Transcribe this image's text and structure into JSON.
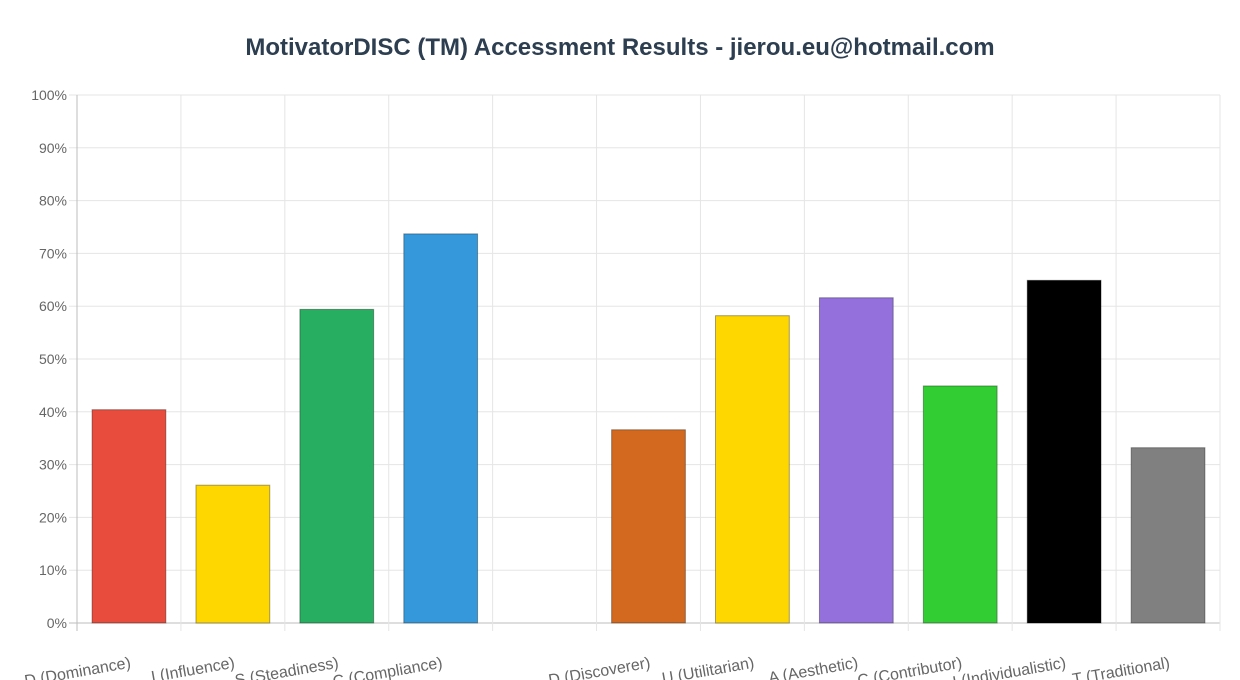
{
  "chart_data": {
    "type": "bar",
    "title": "MotivatorDISC (TM) Accessment Results - jierou.eu@hotmail.com",
    "xlabel": "",
    "ylabel": "",
    "ylim": [
      0,
      100
    ],
    "y_tick_step": 10,
    "y_tick_suffix": "%",
    "grid": true,
    "categories": [
      "D (Dominance)",
      "I (Influence)",
      "S (Steadiness)",
      "C (Compliance)",
      "",
      "D (Discoverer)",
      "U (Utilitarian)",
      "A (Aesthetic)",
      "C (Contributor)",
      "I (Individualistic)",
      "T (Traditional)"
    ],
    "values": [
      40.4,
      26.1,
      59.4,
      73.7,
      null,
      36.6,
      58.2,
      61.6,
      44.9,
      64.9,
      33.2
    ],
    "colors": [
      "#e74c3c",
      "#ffd700",
      "#27ae60",
      "#3498db",
      "",
      "#d2691e",
      "#ffd700",
      "#9370db",
      "#32cd32",
      "#000000",
      "#808080"
    ]
  }
}
